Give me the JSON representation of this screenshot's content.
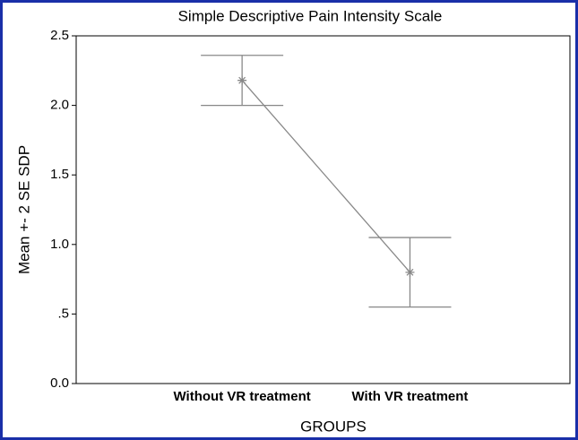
{
  "chart_data": {
    "type": "errorbar",
    "title": "Simple Descriptive Pain Intensity Scale",
    "ylabel": "Mean +- 2 SE SDP",
    "xlabel": "GROUPS",
    "categories": [
      "Without VR treatment",
      "With VR treatment"
    ],
    "values": [
      2.18,
      0.8
    ],
    "errors": [
      0.18,
      0.25
    ],
    "color": "#888888",
    "ylim": [
      0,
      2.5
    ],
    "yticks": [
      {
        "value": 0,
        "label": "0.0"
      },
      {
        "value": 0.5,
        "label": ".5"
      },
      {
        "value": 1,
        "label": "1.0"
      },
      1.5,
      {
        "value": 2,
        "label": "2.0"
      },
      2.5
    ]
  }
}
